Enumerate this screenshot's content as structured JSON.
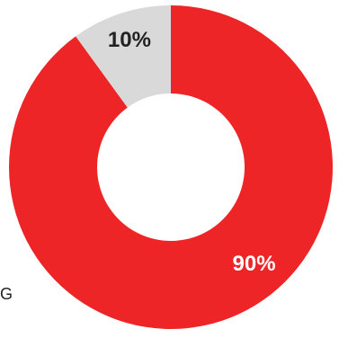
{
  "chart_data": {
    "type": "pie",
    "variant": "donut",
    "slices": [
      {
        "value": 90,
        "label": "90%",
        "color": "#ee2527",
        "label_color": "#ffffff"
      },
      {
        "value": 10,
        "label": "10%",
        "color": "#d9d9d9",
        "label_color": "#222222"
      }
    ],
    "start": "top",
    "direction": "clockwise",
    "legend": "none"
  },
  "stray_text": "G"
}
